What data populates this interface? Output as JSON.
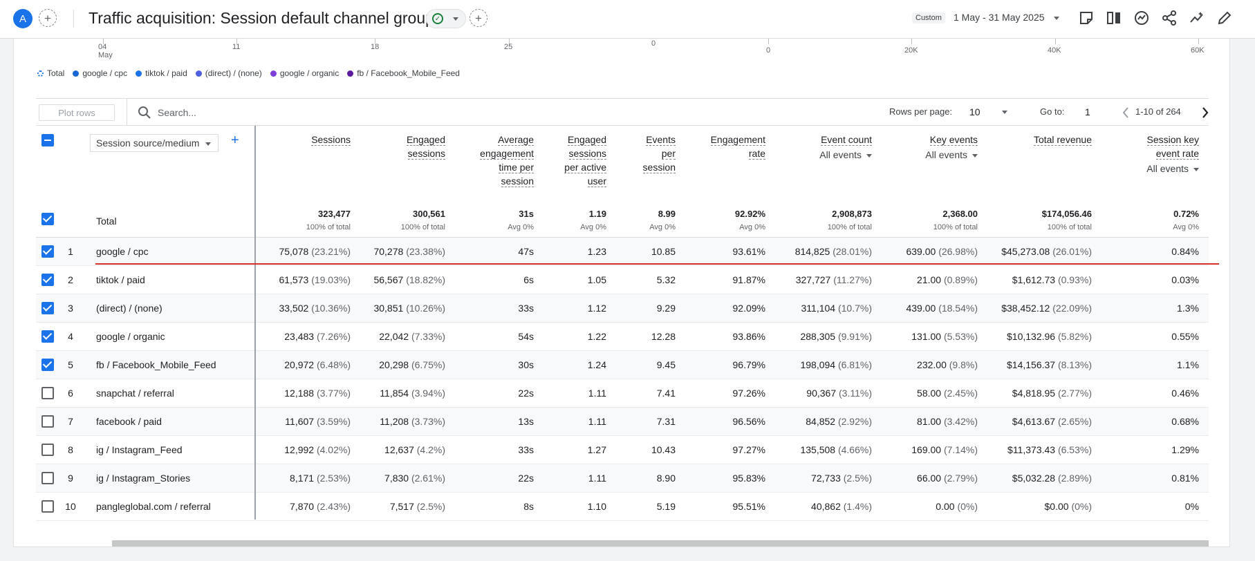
{
  "header": {
    "avatar_letter": "A",
    "title": "Traffic acquisition: Session default channel group",
    "custom_badge": "Custom",
    "date_range": "1 May - 31 May 2025",
    "icons": [
      "add-icon",
      "check-circle-icon",
      "chevron-down-icon",
      "add-comparison-icon",
      "annotation-icon",
      "compare-icon",
      "insights-icon",
      "share-icon",
      "trend-icon",
      "edit-icon"
    ]
  },
  "chart_axis": {
    "date_ticks": [
      {
        "day": "04",
        "month": "May"
      },
      {
        "day": "11"
      },
      {
        "day": "18"
      },
      {
        "day": "25"
      }
    ],
    "bar_ticks": [
      "0",
      "0",
      "20K",
      "40K",
      "60K"
    ]
  },
  "legend": {
    "items": [
      {
        "label": "Total",
        "color": "#1a73e8",
        "dotted": true
      },
      {
        "label": "google / cpc",
        "color": "#1967d2"
      },
      {
        "label": "tiktok / paid",
        "color": "#1a73e8"
      },
      {
        "label": "(direct) / (none)",
        "color": "#4e5fe0"
      },
      {
        "label": "google / organic",
        "color": "#7e3fd8"
      },
      {
        "label": "fb / Facebook_Mobile_Feed",
        "color": "#5c1a9f"
      }
    ]
  },
  "toolbar": {
    "plot_rows": "Plot rows",
    "search_placeholder": "Search...",
    "rows_per_page_label": "Rows per page:",
    "rows_per_page": "10",
    "goto_label": "Go to:",
    "goto_value": "1",
    "pagination": "1-10 of 264"
  },
  "table": {
    "dimension_select": "Session source/medium",
    "columns": [
      {
        "lines": [
          "Sessions"
        ]
      },
      {
        "lines": [
          "Engaged",
          "sessions"
        ]
      },
      {
        "lines": [
          "Average",
          "engagement",
          "time per",
          "session"
        ]
      },
      {
        "lines": [
          "Engaged",
          "sessions",
          "per active",
          "user"
        ]
      },
      {
        "lines": [
          "Events",
          "per",
          "session"
        ]
      },
      {
        "lines": [
          "Engagement",
          "rate"
        ]
      },
      {
        "lines": [
          "Event count"
        ],
        "sub": "All events"
      },
      {
        "lines": [
          "Key events"
        ],
        "sub": "All events"
      },
      {
        "lines": [
          "Total revenue"
        ]
      },
      {
        "lines": [
          "Session key",
          "event rate"
        ],
        "sub": "All events"
      }
    ],
    "total": {
      "label": "Total",
      "values": [
        "323,477",
        "300,561",
        "31s",
        "1.19",
        "8.99",
        "92.92%",
        "2,908,873",
        "2,368.00",
        "$174,056.46",
        "0.72%"
      ],
      "subs": [
        "100% of total",
        "100% of total",
        "Avg 0%",
        "Avg 0%",
        "Avg 0%",
        "Avg 0%",
        "100% of total",
        "100% of total",
        "100% of total",
        "Avg 0%"
      ]
    },
    "rows": [
      {
        "idx": "1",
        "checked": true,
        "dim": "google / cpc",
        "cells": [
          [
            "75,078",
            "(23.21%)"
          ],
          [
            "70,278",
            "(23.38%)"
          ],
          [
            "47s",
            ""
          ],
          [
            "1.23",
            ""
          ],
          [
            "10.85",
            ""
          ],
          [
            "93.61%",
            ""
          ],
          [
            "814,825",
            "(28.01%)"
          ],
          [
            "639.00",
            "(26.98%)"
          ],
          [
            "$45,273.08",
            "(26.01%)"
          ],
          [
            "0.84%",
            ""
          ]
        ]
      },
      {
        "idx": "2",
        "checked": true,
        "dim": "tiktok / paid",
        "cells": [
          [
            "61,573",
            "(19.03%)"
          ],
          [
            "56,567",
            "(18.82%)"
          ],
          [
            "6s",
            ""
          ],
          [
            "1.05",
            ""
          ],
          [
            "5.32",
            ""
          ],
          [
            "91.87%",
            ""
          ],
          [
            "327,727",
            "(11.27%)"
          ],
          [
            "21.00",
            "(0.89%)"
          ],
          [
            "$1,612.73",
            "(0.93%)"
          ],
          [
            "0.03%",
            ""
          ]
        ]
      },
      {
        "idx": "3",
        "checked": true,
        "dim": "(direct) / (none)",
        "cells": [
          [
            "33,502",
            "(10.36%)"
          ],
          [
            "30,851",
            "(10.26%)"
          ],
          [
            "33s",
            ""
          ],
          [
            "1.12",
            ""
          ],
          [
            "9.29",
            ""
          ],
          [
            "92.09%",
            ""
          ],
          [
            "311,104",
            "(10.7%)"
          ],
          [
            "439.00",
            "(18.54%)"
          ],
          [
            "$38,452.12",
            "(22.09%)"
          ],
          [
            "1.3%",
            ""
          ]
        ]
      },
      {
        "idx": "4",
        "checked": true,
        "dim": "google / organic",
        "cells": [
          [
            "23,483",
            "(7.26%)"
          ],
          [
            "22,042",
            "(7.33%)"
          ],
          [
            "54s",
            ""
          ],
          [
            "1.22",
            ""
          ],
          [
            "12.28",
            ""
          ],
          [
            "93.86%",
            ""
          ],
          [
            "288,305",
            "(9.91%)"
          ],
          [
            "131.00",
            "(5.53%)"
          ],
          [
            "$10,132.96",
            "(5.82%)"
          ],
          [
            "0.55%",
            ""
          ]
        ]
      },
      {
        "idx": "5",
        "checked": true,
        "dim": "fb / Facebook_Mobile_Feed",
        "cells": [
          [
            "20,972",
            "(6.48%)"
          ],
          [
            "20,298",
            "(6.75%)"
          ],
          [
            "30s",
            ""
          ],
          [
            "1.24",
            ""
          ],
          [
            "9.45",
            ""
          ],
          [
            "96.79%",
            ""
          ],
          [
            "198,094",
            "(6.81%)"
          ],
          [
            "232.00",
            "(9.8%)"
          ],
          [
            "$14,156.37",
            "(8.13%)"
          ],
          [
            "1.1%",
            ""
          ]
        ]
      },
      {
        "idx": "6",
        "checked": false,
        "dim": "snapchat / referral",
        "cells": [
          [
            "12,188",
            "(3.77%)"
          ],
          [
            "11,854",
            "(3.94%)"
          ],
          [
            "22s",
            ""
          ],
          [
            "1.11",
            ""
          ],
          [
            "7.41",
            ""
          ],
          [
            "97.26%",
            ""
          ],
          [
            "90,367",
            "(3.11%)"
          ],
          [
            "58.00",
            "(2.45%)"
          ],
          [
            "$4,818.95",
            "(2.77%)"
          ],
          [
            "0.46%",
            ""
          ]
        ]
      },
      {
        "idx": "7",
        "checked": false,
        "dim": "facebook / paid",
        "cells": [
          [
            "11,607",
            "(3.59%)"
          ],
          [
            "11,208",
            "(3.73%)"
          ],
          [
            "13s",
            ""
          ],
          [
            "1.11",
            ""
          ],
          [
            "7.31",
            ""
          ],
          [
            "96.56%",
            ""
          ],
          [
            "84,852",
            "(2.92%)"
          ],
          [
            "81.00",
            "(3.42%)"
          ],
          [
            "$4,613.67",
            "(2.65%)"
          ],
          [
            "0.68%",
            ""
          ]
        ]
      },
      {
        "idx": "8",
        "checked": false,
        "dim": "ig / Instagram_Feed",
        "cells": [
          [
            "12,992",
            "(4.02%)"
          ],
          [
            "12,637",
            "(4.2%)"
          ],
          [
            "33s",
            ""
          ],
          [
            "1.27",
            ""
          ],
          [
            "10.43",
            ""
          ],
          [
            "97.27%",
            ""
          ],
          [
            "135,508",
            "(4.66%)"
          ],
          [
            "169.00",
            "(7.14%)"
          ],
          [
            "$11,373.43",
            "(6.53%)"
          ],
          [
            "1.29%",
            ""
          ]
        ]
      },
      {
        "idx": "9",
        "checked": false,
        "dim": "ig / Instagram_Stories",
        "cells": [
          [
            "8,171",
            "(2.53%)"
          ],
          [
            "7,830",
            "(2.61%)"
          ],
          [
            "22s",
            ""
          ],
          [
            "1.11",
            ""
          ],
          [
            "8.90",
            ""
          ],
          [
            "95.83%",
            ""
          ],
          [
            "72,733",
            "(2.5%)"
          ],
          [
            "66.00",
            "(2.79%)"
          ],
          [
            "$5,032.28",
            "(2.89%)"
          ],
          [
            "0.81%",
            ""
          ]
        ]
      },
      {
        "idx": "10",
        "checked": false,
        "dim": "pangleglobal.com / referral",
        "cells": [
          [
            "7,870",
            "(2.43%)"
          ],
          [
            "7,517",
            "(2.5%)"
          ],
          [
            "8s",
            ""
          ],
          [
            "1.10",
            ""
          ],
          [
            "5.19",
            ""
          ],
          [
            "95.51%",
            ""
          ],
          [
            "40,862",
            "(1.4%)"
          ],
          [
            "0.00",
            "(0%)"
          ],
          [
            "$0.00",
            "(0%)"
          ],
          [
            "0%",
            ""
          ]
        ]
      }
    ]
  }
}
